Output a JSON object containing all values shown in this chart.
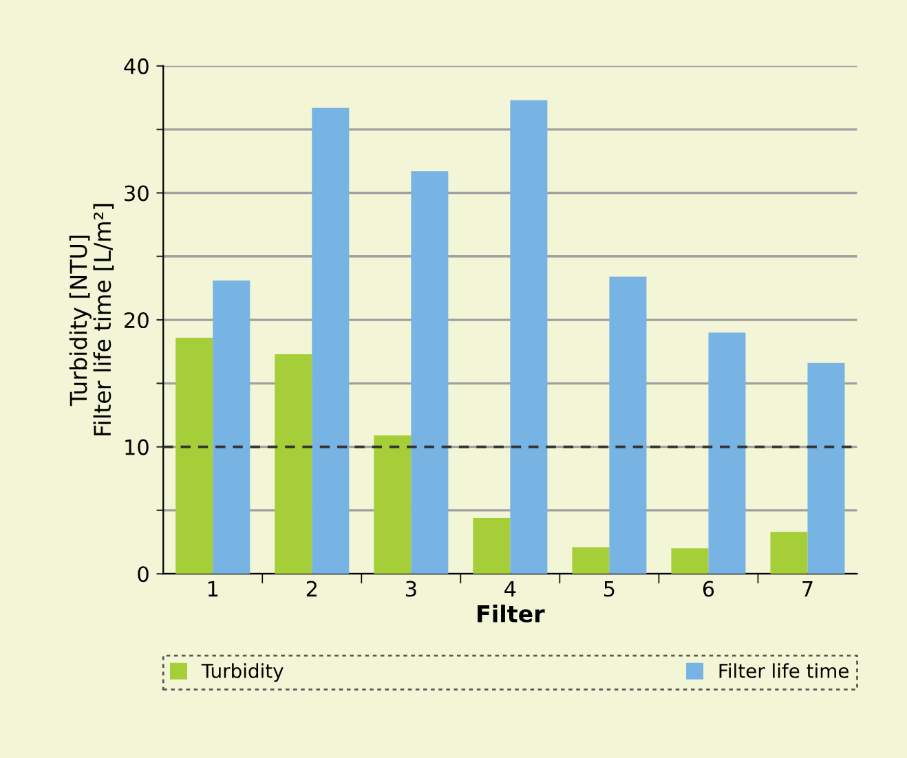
{
  "chart_data": {
    "type": "bar",
    "xlabel": "Filter",
    "ylabel": "Turbidity [NTU]\nFilter life time [L/m²]",
    "categories": [
      "1",
      "2",
      "3",
      "4",
      "5",
      "6",
      "7"
    ],
    "series": [
      {
        "name": "Turbidity",
        "color": "#a6ce39",
        "values": [
          18.6,
          17.3,
          10.9,
          4.4,
          2.1,
          2.0,
          3.3
        ]
      },
      {
        "name": "Filter life time",
        "color": "#77b3e3",
        "values": [
          23.1,
          36.7,
          31.7,
          37.3,
          23.4,
          19.0,
          16.6
        ]
      }
    ],
    "ylim": [
      0,
      40
    ],
    "yticks": [
      0,
      {
        "value": 5,
        "label": null
      },
      10,
      {
        "value": 15,
        "label": null
      },
      20,
      {
        "value": 25,
        "label": null
      },
      30,
      {
        "value": 35,
        "label": null
      },
      40
    ],
    "ref_lines": [
      {
        "axis": "y",
        "value": 10,
        "color": "#333333",
        "line_style": "dashed"
      }
    ],
    "grid": "y",
    "legend": "bottom"
  }
}
